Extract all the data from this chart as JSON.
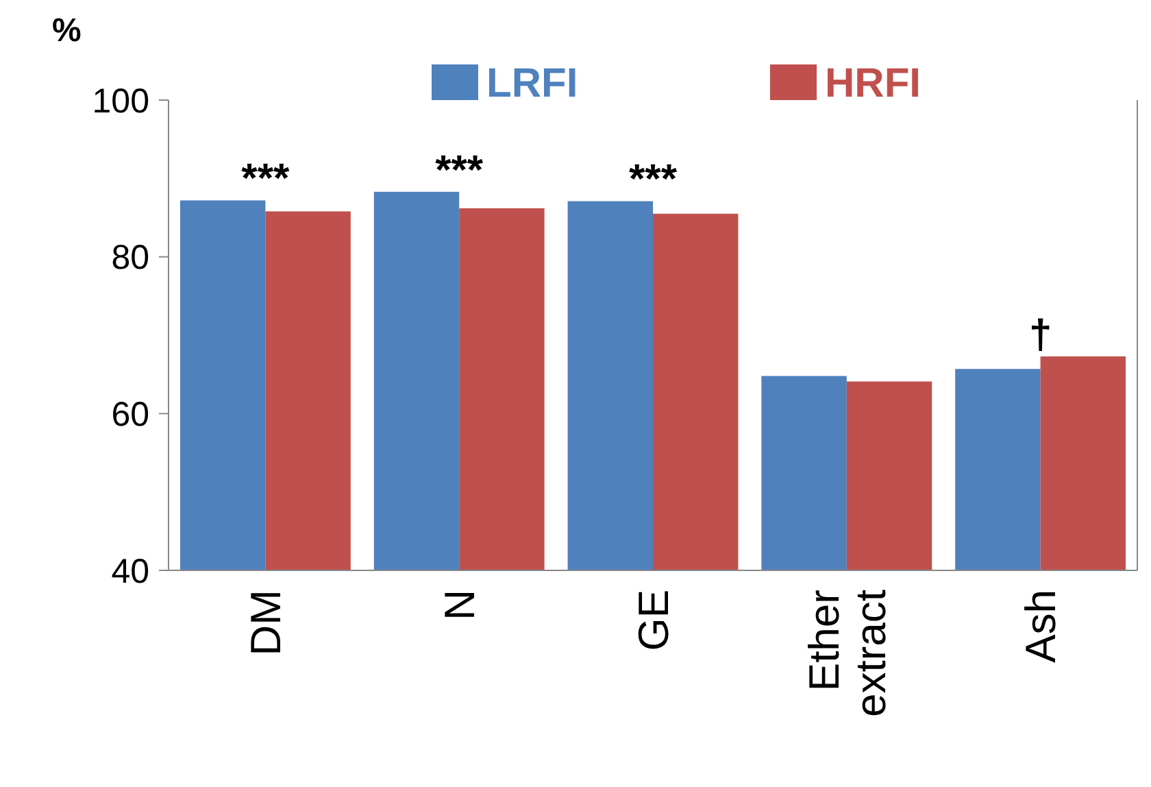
{
  "chart_data": {
    "type": "bar",
    "ylabel": "%",
    "categories": [
      "DM",
      "N",
      "GE",
      "Ether extract",
      "Ash"
    ],
    "series": [
      {
        "name": "LRFI",
        "color": "#4f81bd",
        "values": [
          87.2,
          88.3,
          87.1,
          64.8,
          65.7
        ]
      },
      {
        "name": "HRFI",
        "color": "#c0504d",
        "values": [
          85.8,
          86.2,
          85.5,
          64.1,
          67.3
        ]
      }
    ],
    "ylim": [
      40,
      100
    ],
    "yticks": [
      40,
      60,
      80,
      100
    ],
    "grid": false,
    "legend": "top",
    "annotations": [
      {
        "text": "***",
        "x": "DM",
        "y": 87.2
      },
      {
        "text": "***",
        "x": "N",
        "y": 88.3
      },
      {
        "text": "***",
        "x": "GE",
        "y": 87.1
      },
      {
        "text": "†",
        "x": "Ash",
        "y": 67.3
      }
    ]
  }
}
